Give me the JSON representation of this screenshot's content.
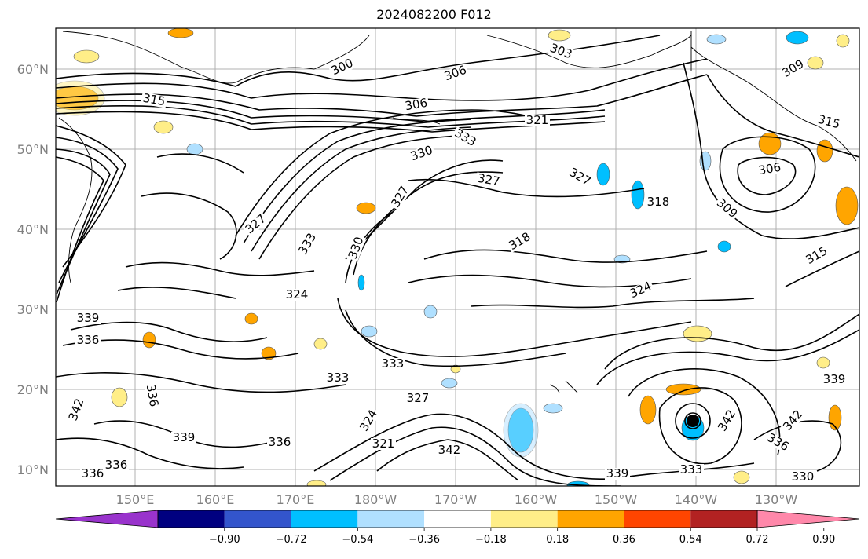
{
  "title": "2024082200 F012",
  "map": {
    "lat_labels": [
      "60°N",
      "50°N",
      "40°N",
      "30°N",
      "20°N",
      "10°N"
    ],
    "lon_labels": [
      "150°E",
      "160°E",
      "170°E",
      "180°W",
      "170°W",
      "160°W",
      "150°W",
      "140°W",
      "130°W"
    ],
    "grid": true,
    "contour_labels": [
      "300",
      "303",
      "306",
      "309",
      "315",
      "306",
      "321",
      "333",
      "327",
      "330",
      "327",
      "318",
      "306",
      "309",
      "315",
      "315",
      "318",
      "324",
      "327",
      "333",
      "324",
      "330",
      "339",
      "336",
      "333",
      "333",
      "327",
      "324",
      "336",
      "342",
      "339",
      "336",
      "336",
      "342",
      "339",
      "333",
      "330",
      "342",
      "336",
      "342",
      "339",
      "336",
      "321",
      "327"
    ],
    "contour_color": "#000000"
  },
  "colorbar": {
    "ticks": [
      "−0.90",
      "−0.72",
      "−0.54",
      "−0.36",
      "−0.18",
      "0.18",
      "0.36",
      "0.54",
      "0.72",
      "0.90"
    ],
    "colors": [
      "#9933cc",
      "#000080",
      "#3355cc",
      "#00bfff",
      "#b0e0ff",
      "#ffffff",
      "#ffee88",
      "#ffa500",
      "#ff4500",
      "#b22222",
      "#ff88aa"
    ],
    "extend": "both"
  }
}
